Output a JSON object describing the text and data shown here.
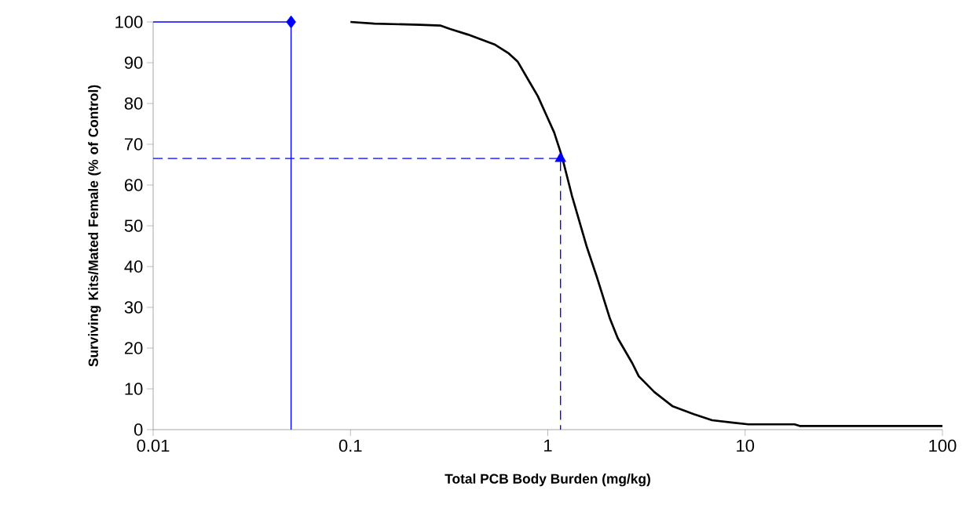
{
  "chart_data": {
    "type": "line",
    "xlabel": "Total PCB Body Burden (mg/kg)",
    "ylabel": "Surviving Kits/Mated Female (% of Control)",
    "log": "x",
    "xlim": [
      0.01,
      100
    ],
    "xticks": [
      0.01,
      0.1,
      1,
      10,
      100
    ],
    "ylim": [
      0,
      100
    ],
    "yticks": [
      0,
      10,
      20,
      30,
      40,
      50,
      60,
      70,
      80,
      90,
      100
    ],
    "grid": false,
    "series": [
      {
        "color": "#000000",
        "marker": "none",
        "line_style": "solid",
        "x": [
          0.1,
          0.132,
          0.225,
          0.287,
          0.318,
          0.394,
          0.541,
          0.63,
          0.703,
          0.81,
          0.89,
          0.98,
          1.077,
          1.18,
          1.327,
          1.57,
          1.774,
          2.066,
          2.264,
          2.68,
          2.89,
          3.47,
          4.3,
          5.49,
          6.8,
          8.69,
          10.4,
          17.8,
          18.9,
          100
        ],
        "values": [
          100,
          99.6,
          99.3,
          99.1,
          98.3,
          96.9,
          94.4,
          92.4,
          90.3,
          85.2,
          81.8,
          77.3,
          72.9,
          67.0,
          57.3,
          45.1,
          37.4,
          27.2,
          22.4,
          16.3,
          13.1,
          9.2,
          5.7,
          3.8,
          2.3,
          1.7,
          1.3,
          1.3,
          0.9,
          0.9
        ]
      },
      {
        "color": "#0000ff",
        "marker": "none",
        "line_style": "solid",
        "x": [
          0.01,
          0.05,
          0.05
        ],
        "values": [
          100,
          100,
          0
        ]
      },
      {
        "color": "#0000ff",
        "marker": "none",
        "line_style": "dashed",
        "x": [
          0.01,
          1.16,
          1.16
        ],
        "values": [
          66.5,
          66.5,
          0
        ]
      },
      {
        "type": "scatter",
        "color": "#0000ff",
        "marker": "diamond",
        "x": [
          0.05
        ],
        "values": [
          100
        ]
      },
      {
        "type": "scatter",
        "color": "#0000ff",
        "marker": "triangle",
        "x": [
          1.16
        ],
        "values": [
          66.5
        ]
      }
    ]
  }
}
